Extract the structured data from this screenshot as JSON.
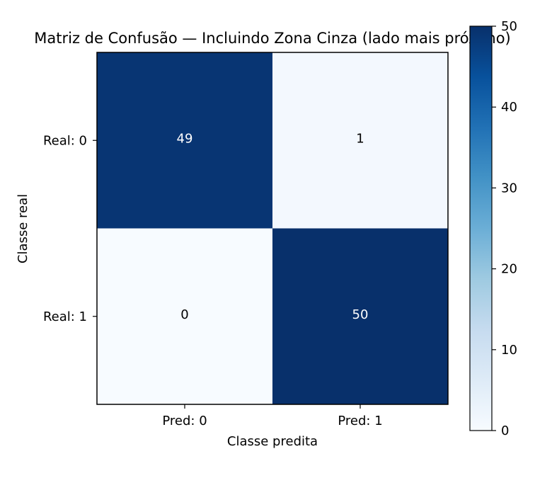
{
  "chart_data": {
    "type": "heatmap",
    "title": "Matriz de Confusão — Incluindo Zona Cinza (lado mais próximo)",
    "xlabel": "Classe predita",
    "ylabel": "Classe real",
    "x_categories": [
      "Pred: 0",
      "Pred: 1"
    ],
    "y_categories": [
      "Real: 0",
      "Real: 1"
    ],
    "values": [
      [
        49,
        1
      ],
      [
        0,
        50
      ]
    ],
    "colormap": "Blues",
    "vmin": 0,
    "vmax": 50,
    "colorbar_ticks": [
      0,
      10,
      20,
      30,
      40,
      50
    ]
  }
}
